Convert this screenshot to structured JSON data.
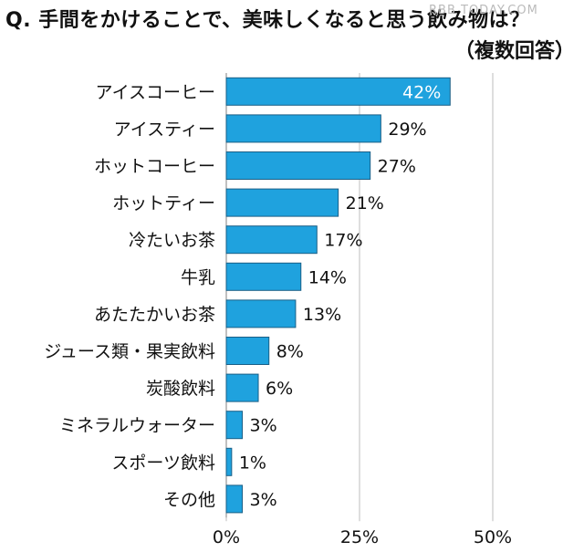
{
  "header": {
    "title": "Q. 手間をかけることで、美味しくなると思う飲み物は？",
    "subtitle": "（複数回答）",
    "watermark": "RBB TODAY.COM"
  },
  "chart_data": {
    "type": "bar",
    "orientation": "horizontal",
    "title": "Q. 手間をかけることで、美味しくなると思う飲み物は？",
    "subtitle": "（複数回答）",
    "categories": [
      "アイスコーヒー",
      "アイスティー",
      "ホットコーヒー",
      "ホットティー",
      "冷たいお茶",
      "牛乳",
      "あたたかいお茶",
      "ジュース類・果実飲料",
      "炭酸飲料",
      "ミネラルウォーター",
      "スポーツ飲料",
      "その他"
    ],
    "values": [
      42,
      29,
      27,
      21,
      17,
      14,
      13,
      8,
      6,
      3,
      1,
      3
    ],
    "value_labels": [
      "42%",
      "29%",
      "27%",
      "21%",
      "17%",
      "14%",
      "13%",
      "8%",
      "6%",
      "3%",
      "1%",
      "3%"
    ],
    "xlim": [
      0,
      50
    ],
    "xticks": [
      0,
      25,
      50
    ],
    "xtick_labels": [
      "0%",
      "25%",
      "50%"
    ],
    "grid": true,
    "bar_color": "#1fa2de",
    "bar_edge_color": "#1a5f86"
  }
}
